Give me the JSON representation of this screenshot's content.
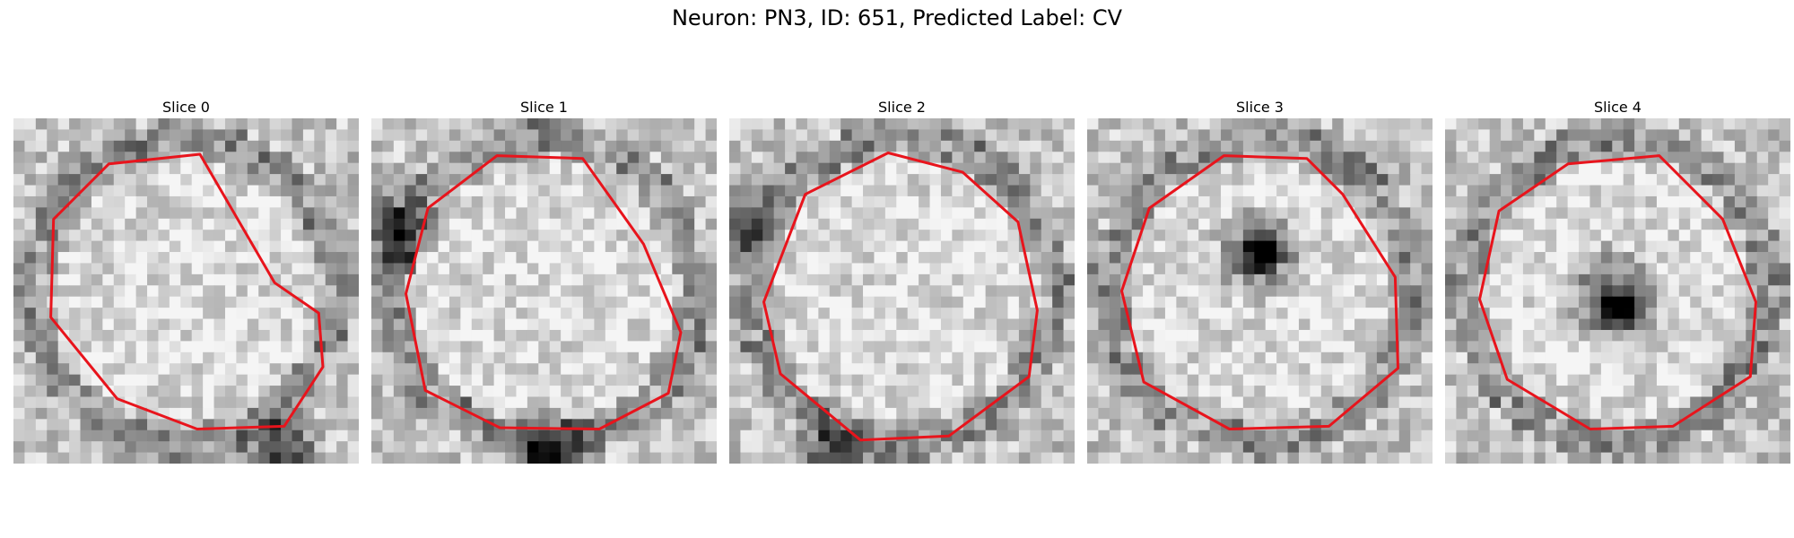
{
  "figure": {
    "title": "Neuron: PN3, ID: 651, Predicted Label: CV"
  },
  "slices": [
    {
      "label": "Slice 0",
      "outline": [
        [
          0.64,
          -0.06
        ],
        [
          0.96,
          0.16
        ],
        [
          0.99,
          0.55
        ],
        [
          0.71,
          0.98
        ],
        [
          0.08,
          1.0
        ],
        [
          -0.5,
          0.78
        ],
        [
          -0.98,
          0.19
        ],
        [
          -0.96,
          -0.52
        ],
        [
          -0.56,
          -0.92
        ],
        [
          0.1,
          -0.99
        ]
      ],
      "dark_spots": [
        [
          0.55,
          0.94,
          0.14
        ]
      ]
    },
    {
      "label": "Slice 1",
      "outline": [
        [
          0.72,
          -0.34
        ],
        [
          0.99,
          0.3
        ],
        [
          0.9,
          0.74
        ],
        [
          0.4,
          1.0
        ],
        [
          -0.32,
          0.99
        ],
        [
          -0.86,
          0.72
        ],
        [
          -1.0,
          0.02
        ],
        [
          -0.84,
          -0.6
        ],
        [
          -0.34,
          -0.98
        ],
        [
          0.28,
          -0.96
        ]
      ],
      "dark_spots": [
        [
          0.05,
          0.95,
          0.16
        ],
        [
          -0.85,
          -0.35,
          0.14
        ]
      ]
    },
    {
      "label": "Slice 2",
      "outline": [
        [
          0.84,
          -0.5
        ],
        [
          0.98,
          0.14
        ],
        [
          0.92,
          0.62
        ],
        [
          0.34,
          1.05
        ],
        [
          -0.3,
          1.08
        ],
        [
          -0.88,
          0.6
        ],
        [
          -1.0,
          0.08
        ],
        [
          -0.7,
          -0.7
        ],
        [
          -0.1,
          -1.0
        ],
        [
          0.44,
          -0.86
        ]
      ],
      "dark_spots": [
        [
          -0.4,
          0.98,
          0.15
        ],
        [
          -0.98,
          -0.4,
          0.14
        ]
      ]
    },
    {
      "label": "Slice 3",
      "outline": [
        [
          0.6,
          -0.7
        ],
        [
          0.98,
          -0.1
        ],
        [
          1.0,
          0.56
        ],
        [
          0.5,
          0.98
        ],
        [
          -0.22,
          1.0
        ],
        [
          -0.84,
          0.66
        ],
        [
          -1.0,
          0.0
        ],
        [
          -0.8,
          -0.6
        ],
        [
          -0.26,
          -0.98
        ],
        [
          0.34,
          -0.96
        ]
      ],
      "dark_spots": [
        [
          0.0,
          -0.22,
          0.16
        ],
        [
          0.0,
          -0.22,
          0.08
        ]
      ]
    },
    {
      "label": "Slice 4",
      "outline": [
        [
          0.76,
          -0.52
        ],
        [
          1.0,
          0.08
        ],
        [
          0.96,
          0.62
        ],
        [
          0.4,
          0.98
        ],
        [
          -0.2,
          1.0
        ],
        [
          -0.8,
          0.64
        ],
        [
          -1.0,
          0.06
        ],
        [
          -0.86,
          -0.58
        ],
        [
          -0.36,
          -0.92
        ],
        [
          0.3,
          -0.98
        ]
      ],
      "dark_spots": [
        [
          -0.02,
          0.04,
          0.18
        ],
        [
          0.02,
          0.12,
          0.08
        ]
      ]
    }
  ]
}
